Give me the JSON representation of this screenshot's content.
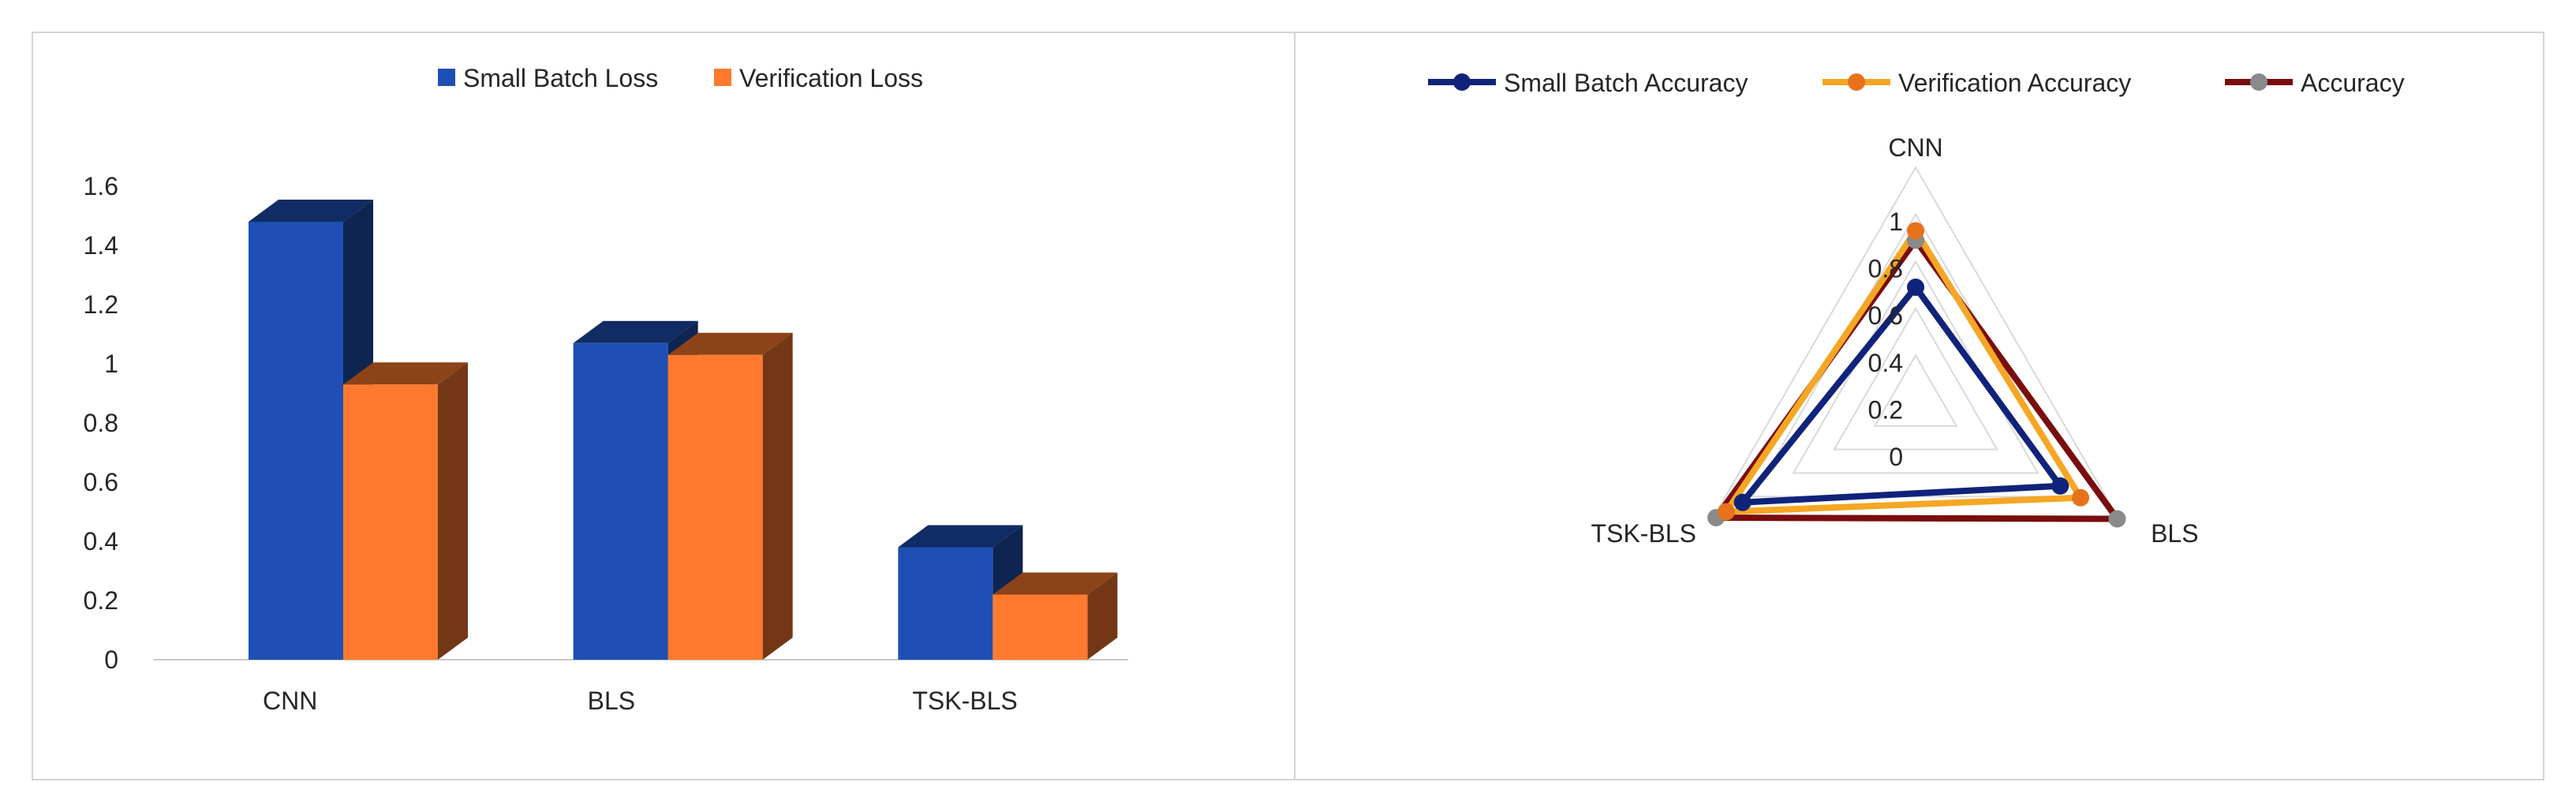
{
  "chart_data": [
    {
      "type": "bar",
      "categories": [
        "CNN",
        "BLS",
        "TSK-BLS"
      ],
      "series": [
        {
          "name": "Small Batch Loss",
          "values": [
            1.48,
            1.07,
            0.38
          ],
          "color": "#1f4fb5"
        },
        {
          "name": "Verification Loss",
          "values": [
            0.93,
            1.03,
            0.22
          ],
          "color": "#ff7a2e"
        }
      ],
      "ylim": [
        0,
        1.6
      ],
      "yticks": [
        "0",
        "0.2",
        "0.4",
        "0.6",
        "0.8",
        "1",
        "1.2",
        "1.4",
        "1.6"
      ],
      "legend_position": "top",
      "grid": false,
      "style": "3d-column"
    },
    {
      "type": "radar",
      "categories": [
        "CNN",
        "BLS",
        "TSK-BLS"
      ],
      "series": [
        {
          "name": "Small Batch Accuracy",
          "values": [
            0.49,
            0.71,
            0.85
          ],
          "color": "#10237a"
        },
        {
          "name": "Verification Accuracy",
          "values": [
            0.73,
            0.81,
            0.93
          ],
          "color": "#f5a623"
        },
        {
          "name": "Accuracy",
          "values": [
            0.69,
            0.99,
            0.98
          ],
          "color": "#7a0d0d"
        }
      ],
      "rticks": [
        "0",
        "0.2",
        "0.4",
        "0.6",
        "0.8",
        "1"
      ],
      "rlim": [
        0,
        1
      ],
      "legend_position": "top",
      "grid": true
    }
  ]
}
